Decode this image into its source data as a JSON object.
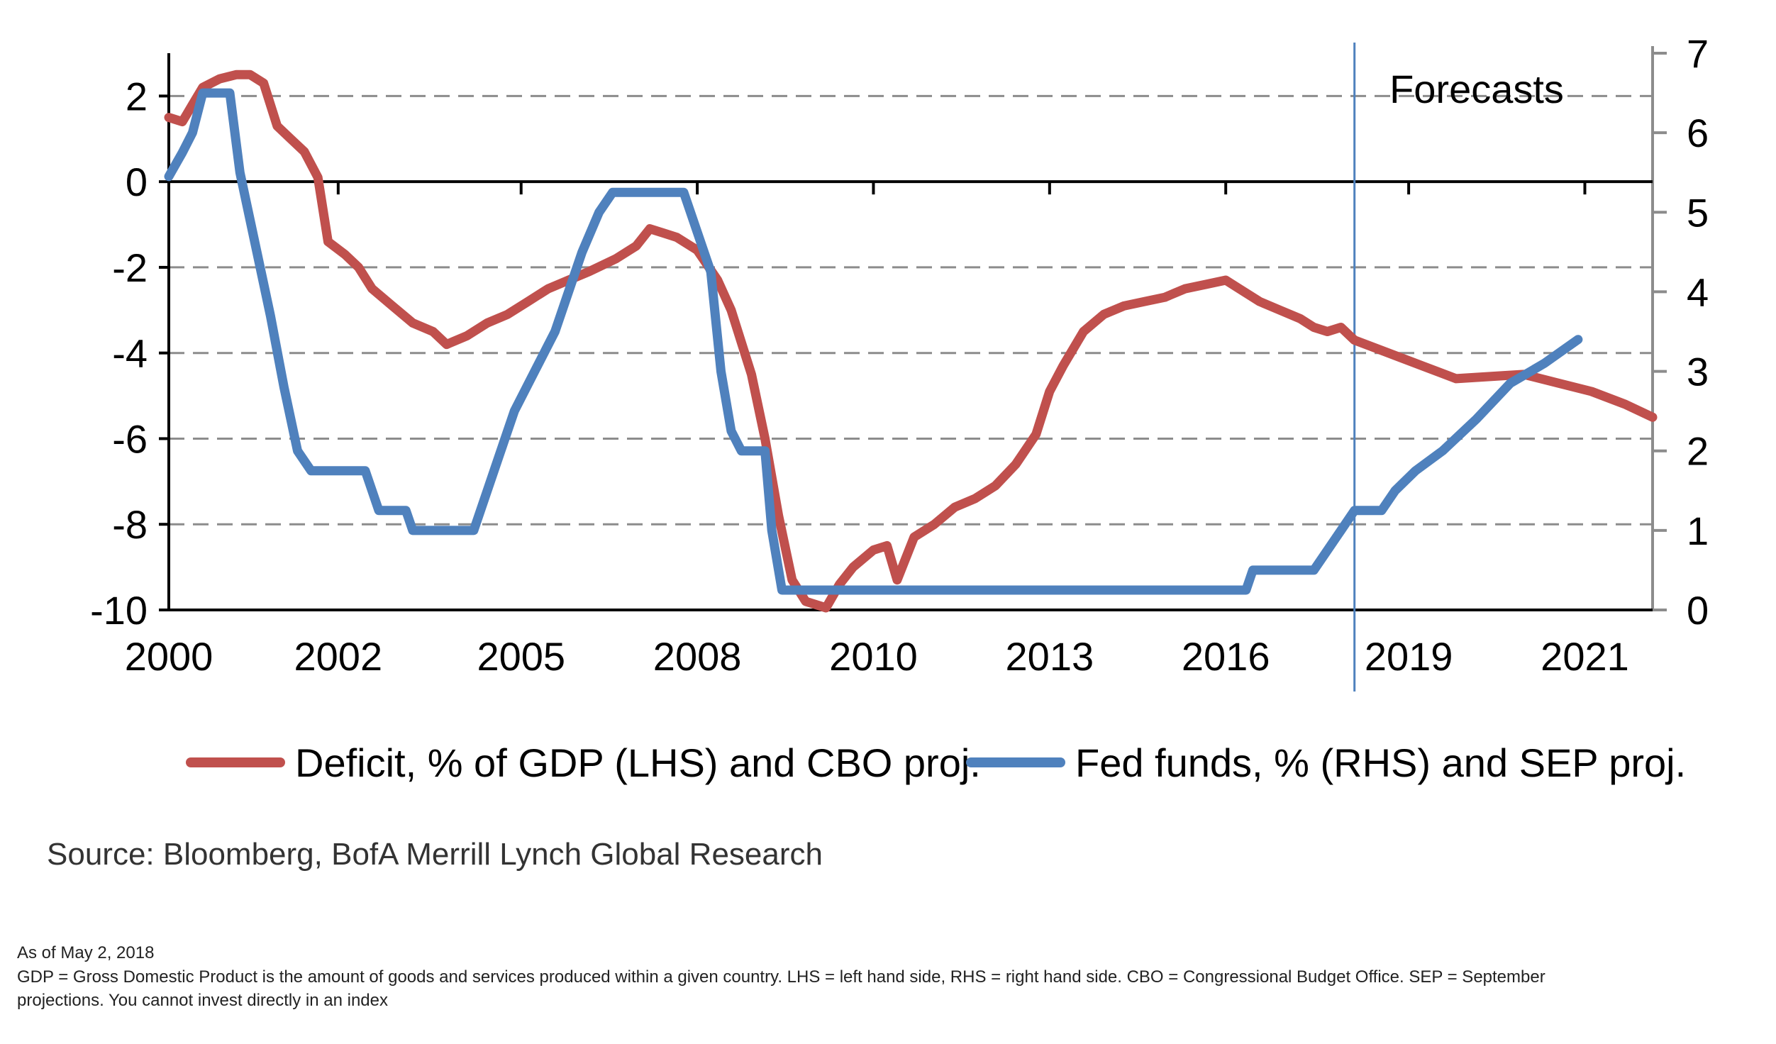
{
  "colors": {
    "deficit": "#c0504d",
    "fed_funds": "#4f81bd",
    "grid": "#8c8c8c",
    "forecast_line": "#4f81bd"
  },
  "legend": {
    "deficit_label": "Deficit, % of GDP (LHS) and CBO proj.",
    "fed_label": "Fed funds, % (RHS) and SEP proj."
  },
  "source_text": "Source:  Bloomberg, BofA Merrill Lynch Global Research",
  "footnotes": {
    "as_of": "As of May 2, 2018",
    "line1": "GDP = Gross Domestic Product is the amount of goods and services produced within a given country. LHS = left hand side, RHS = right hand side. CBO =  Congressional Budget Office. SEP = September",
    "line2": "projections. You cannot invest directly in an index"
  },
  "chart_data": {
    "type": "line",
    "title": "",
    "xlabel": "",
    "ylabel_left": "",
    "ylabel_right": "",
    "xlim": [
      2000,
      2021.9
    ],
    "ylim_left": [
      -10,
      3
    ],
    "ylim_right": [
      0,
      7
    ],
    "yticks_left": [
      2,
      0,
      -2,
      -4,
      -6,
      -8,
      -10
    ],
    "yticks_right": [
      7,
      6,
      5,
      4,
      3,
      2,
      1,
      0
    ],
    "x_tick_labels": [
      {
        "label": "2000",
        "x": 2000
      },
      {
        "label": "2002",
        "x": 2002.5
      },
      {
        "label": "2005",
        "x": 2005.2
      },
      {
        "label": "2008",
        "x": 2007.8
      },
      {
        "label": "2010",
        "x": 2010.4
      },
      {
        "label": "2013",
        "x": 2013
      },
      {
        "label": "2016",
        "x": 2015.6
      },
      {
        "label": "2019",
        "x": 2018.3
      },
      {
        "label": "2021",
        "x": 2020.9
      }
    ],
    "grid": true,
    "forecast_start": 2017.5,
    "forecast_label": "Forecasts",
    "series": [
      {
        "name": "Deficit, % of GDP (LHS) and CBO proj.",
        "axis": "left",
        "points": [
          [
            2000,
            1.5
          ],
          [
            2000.2,
            1.4
          ],
          [
            2000.35,
            1.8
          ],
          [
            2000.5,
            2.2
          ],
          [
            2000.75,
            2.4
          ],
          [
            2001,
            2.5
          ],
          [
            2001.2,
            2.5
          ],
          [
            2001.4,
            2.3
          ],
          [
            2001.6,
            1.3
          ],
          [
            2001.8,
            1.0
          ],
          [
            2002,
            0.7
          ],
          [
            2002.2,
            0.1
          ],
          [
            2002.35,
            -1.4
          ],
          [
            2002.6,
            -1.7
          ],
          [
            2002.8,
            -2.0
          ],
          [
            2003,
            -2.5
          ],
          [
            2003.3,
            -2.9
          ],
          [
            2003.6,
            -3.3
          ],
          [
            2003.9,
            -3.5
          ],
          [
            2004.1,
            -3.8
          ],
          [
            2004.4,
            -3.6
          ],
          [
            2004.7,
            -3.3
          ],
          [
            2005,
            -3.1
          ],
          [
            2005.3,
            -2.8
          ],
          [
            2005.6,
            -2.5
          ],
          [
            2005.9,
            -2.3
          ],
          [
            2006.2,
            -2.1
          ],
          [
            2006.6,
            -1.8
          ],
          [
            2006.9,
            -1.5
          ],
          [
            2007.1,
            -1.1
          ],
          [
            2007.3,
            -1.2
          ],
          [
            2007.5,
            -1.3
          ],
          [
            2007.8,
            -1.6
          ],
          [
            2008.1,
            -2.3
          ],
          [
            2008.3,
            -3.0
          ],
          [
            2008.6,
            -4.5
          ],
          [
            2008.8,
            -6.0
          ],
          [
            2009,
            -7.8
          ],
          [
            2009.2,
            -9.3
          ],
          [
            2009.4,
            -9.8
          ],
          [
            2009.7,
            -9.95
          ],
          [
            2009.9,
            -9.4
          ],
          [
            2010.1,
            -9.0
          ],
          [
            2010.4,
            -8.6
          ],
          [
            2010.6,
            -8.5
          ],
          [
            2010.75,
            -9.3
          ],
          [
            2011,
            -8.3
          ],
          [
            2011.3,
            -8.0
          ],
          [
            2011.6,
            -7.6
          ],
          [
            2011.9,
            -7.4
          ],
          [
            2012.2,
            -7.1
          ],
          [
            2012.5,
            -6.6
          ],
          [
            2012.8,
            -5.9
          ],
          [
            2013,
            -4.9
          ],
          [
            2013.2,
            -4.3
          ],
          [
            2013.5,
            -3.5
          ],
          [
            2013.8,
            -3.1
          ],
          [
            2014.1,
            -2.9
          ],
          [
            2014.4,
            -2.8
          ],
          [
            2014.7,
            -2.7
          ],
          [
            2015,
            -2.5
          ],
          [
            2015.3,
            -2.4
          ],
          [
            2015.6,
            -2.3
          ],
          [
            2015.8,
            -2.5
          ],
          [
            2016.1,
            -2.8
          ],
          [
            2016.4,
            -3.0
          ],
          [
            2016.7,
            -3.2
          ],
          [
            2016.9,
            -3.4
          ],
          [
            2017.1,
            -3.5
          ],
          [
            2017.3,
            -3.4
          ],
          [
            2017.5,
            -3.7
          ],
          [
            2018,
            -4.0
          ],
          [
            2018.5,
            -4.3
          ],
          [
            2019,
            -4.6
          ],
          [
            2019.5,
            -4.55
          ],
          [
            2020,
            -4.5
          ],
          [
            2020.5,
            -4.7
          ],
          [
            2021,
            -4.9
          ],
          [
            2021.5,
            -5.2
          ],
          [
            2021.9,
            -5.5
          ]
        ]
      },
      {
        "name": "Fed funds, % (RHS) and SEP proj.",
        "axis": "right",
        "points": [
          [
            2000,
            5.45
          ],
          [
            2000.2,
            5.75
          ],
          [
            2000.35,
            6.0
          ],
          [
            2000.5,
            6.5
          ],
          [
            2000.9,
            6.5
          ],
          [
            2001.05,
            5.5
          ],
          [
            2001.3,
            4.5
          ],
          [
            2001.5,
            3.7
          ],
          [
            2001.7,
            2.8
          ],
          [
            2001.9,
            2.0
          ],
          [
            2002.1,
            1.75
          ],
          [
            2002.9,
            1.75
          ],
          [
            2003.1,
            1.25
          ],
          [
            2003.5,
            1.25
          ],
          [
            2003.6,
            1.0
          ],
          [
            2004.5,
            1.0
          ],
          [
            2004.7,
            1.5
          ],
          [
            2004.9,
            2.0
          ],
          [
            2005.1,
            2.5
          ],
          [
            2005.4,
            3.0
          ],
          [
            2005.7,
            3.5
          ],
          [
            2005.9,
            4.0
          ],
          [
            2006.1,
            4.5
          ],
          [
            2006.35,
            5.0
          ],
          [
            2006.55,
            5.25
          ],
          [
            2007.6,
            5.25
          ],
          [
            2007.8,
            4.75
          ],
          [
            2008,
            4.25
          ],
          [
            2008.15,
            3.0
          ],
          [
            2008.3,
            2.25
          ],
          [
            2008.45,
            2.0
          ],
          [
            2008.8,
            2.0
          ],
          [
            2008.9,
            1.0
          ],
          [
            2009.05,
            0.25
          ],
          [
            2015.9,
            0.25
          ],
          [
            2016.0,
            0.5
          ],
          [
            2016.9,
            0.5
          ],
          [
            2017.1,
            0.75
          ],
          [
            2017.3,
            1.0
          ],
          [
            2017.5,
            1.25
          ],
          [
            2017.9,
            1.25
          ],
          [
            2018.1,
            1.5
          ],
          [
            2018.4,
            1.75
          ],
          [
            2018.8,
            2.0
          ],
          [
            2019.3,
            2.4
          ],
          [
            2019.8,
            2.85
          ],
          [
            2020.3,
            3.1
          ],
          [
            2020.8,
            3.4
          ]
        ]
      }
    ]
  }
}
